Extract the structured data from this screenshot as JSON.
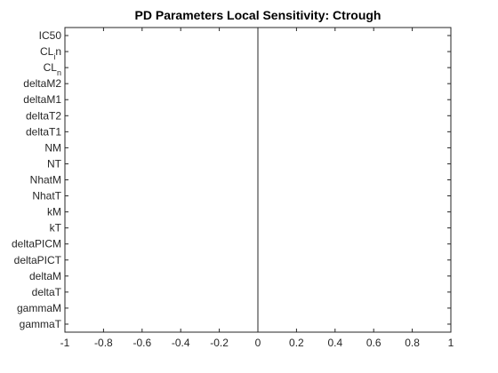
{
  "chart_data": {
    "type": "bar",
    "orientation": "horizontal",
    "title": "PD Parameters Local Sensitivity: Ctrough",
    "xlabel": "",
    "ylabel": "",
    "xlim": [
      -1,
      1
    ],
    "x_ticks": [
      -1,
      -0.8,
      -0.6,
      -0.4,
      -0.2,
      0,
      0.2,
      0.4,
      0.6,
      0.8,
      1
    ],
    "x_tick_labels": [
      "-1",
      "-0.8",
      "-0.6",
      "-0.4",
      "-0.2",
      "0",
      "0.2",
      "0.4",
      "0.6",
      "0.8",
      "1"
    ],
    "categories": [
      {
        "main": "IC50",
        "sub": ""
      },
      {
        "main": "CL",
        "sub": "i",
        "suffix": "n"
      },
      {
        "main": "CL",
        "sub": "n",
        "suffix": ""
      },
      {
        "main": "deltaM2",
        "sub": ""
      },
      {
        "main": "deltaM1",
        "sub": ""
      },
      {
        "main": "deltaT2",
        "sub": ""
      },
      {
        "main": "deltaT1",
        "sub": ""
      },
      {
        "main": "NM",
        "sub": ""
      },
      {
        "main": "NT",
        "sub": ""
      },
      {
        "main": "NhatM",
        "sub": ""
      },
      {
        "main": "NhatT",
        "sub": ""
      },
      {
        "main": "kM",
        "sub": ""
      },
      {
        "main": "kT",
        "sub": ""
      },
      {
        "main": "deltaPICM",
        "sub": ""
      },
      {
        "main": "deltaPICT",
        "sub": ""
      },
      {
        "main": "deltaM",
        "sub": ""
      },
      {
        "main": "deltaT",
        "sub": ""
      },
      {
        "main": "gammaM",
        "sub": ""
      },
      {
        "main": "gammaT",
        "sub": ""
      }
    ],
    "values": [
      0,
      0,
      0,
      0,
      0,
      0,
      0,
      0,
      0,
      0,
      0,
      0,
      0,
      0,
      0,
      0,
      0,
      0,
      0
    ],
    "reference_line_x": 0,
    "grid": false,
    "box": true,
    "colors": {
      "axis": "#262626",
      "bar": "#0072bd",
      "reference_line": "#262626",
      "background": "#ffffff"
    }
  }
}
